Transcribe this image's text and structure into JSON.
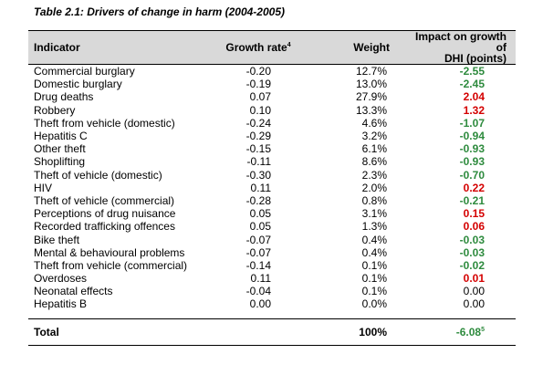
{
  "caption": "Table 2.1: Drivers of change in harm (2004-2005)",
  "headers": {
    "indicator": "Indicator",
    "growth_rate": "Growth rate",
    "growth_rate_note": "4",
    "weight": "Weight",
    "impact_line1": "Impact on growth of",
    "impact_line2": "DHI (points)"
  },
  "rows": [
    {
      "indicator": "Commercial burglary",
      "growth": "-0.20",
      "weight": "12.7%",
      "impact": "-2.55",
      "sign": "neg"
    },
    {
      "indicator": "Domestic burglary",
      "growth": "-0.19",
      "weight": "13.0%",
      "impact": "-2.45",
      "sign": "neg"
    },
    {
      "indicator": "Drug deaths",
      "growth": "0.07",
      "weight": "27.9%",
      "impact": "2.04",
      "sign": "pos"
    },
    {
      "indicator": "Robbery",
      "growth": "0.10",
      "weight": "13.3%",
      "impact": "1.32",
      "sign": "pos"
    },
    {
      "indicator": "Theft from vehicle (domestic)",
      "growth": "-0.24",
      "weight": "4.6%",
      "impact": "-1.07",
      "sign": "neg"
    },
    {
      "indicator": "Hepatitis C",
      "growth": "-0.29",
      "weight": "3.2%",
      "impact": "-0.94",
      "sign": "neg"
    },
    {
      "indicator": "Other theft",
      "growth": "-0.15",
      "weight": "6.1%",
      "impact": "-0.93",
      "sign": "neg"
    },
    {
      "indicator": "Shoplifting",
      "growth": "-0.11",
      "weight": "8.6%",
      "impact": "-0.93",
      "sign": "neg"
    },
    {
      "indicator": "Theft of vehicle (domestic)",
      "growth": "-0.30",
      "weight": "2.3%",
      "impact": "-0.70",
      "sign": "neg"
    },
    {
      "indicator": "HIV",
      "growth": "0.11",
      "weight": "2.0%",
      "impact": "0.22",
      "sign": "pos"
    },
    {
      "indicator": "Theft of vehicle (commercial)",
      "growth": "-0.28",
      "weight": "0.8%",
      "impact": "-0.21",
      "sign": "neg"
    },
    {
      "indicator": "Perceptions of drug nuisance",
      "growth": "0.05",
      "weight": "3.1%",
      "impact": "0.15",
      "sign": "pos"
    },
    {
      "indicator": "Recorded trafficking offences",
      "growth": "0.05",
      "weight": "1.3%",
      "impact": "0.06",
      "sign": "pos"
    },
    {
      "indicator": "Bike theft",
      "growth": "-0.07",
      "weight": "0.4%",
      "impact": "-0.03",
      "sign": "neg"
    },
    {
      "indicator": "Mental & behavioural problems",
      "growth": "-0.07",
      "weight": "0.4%",
      "impact": "-0.03",
      "sign": "neg"
    },
    {
      "indicator": "Theft from vehicle (commercial)",
      "growth": "-0.14",
      "weight": "0.1%",
      "impact": "-0.02",
      "sign": "neg"
    },
    {
      "indicator": "Overdoses",
      "growth": "0.11",
      "weight": "0.1%",
      "impact": "0.01",
      "sign": "pos"
    },
    {
      "indicator": "Neonatal effects",
      "growth": "-0.04",
      "weight": "0.1%",
      "impact": "0.00",
      "sign": "neu"
    },
    {
      "indicator": "Hepatitis B",
      "growth": "0.00",
      "weight": "0.0%",
      "impact": "0.00",
      "sign": "neu"
    }
  ],
  "total": {
    "label": "Total",
    "weight": "100%",
    "impact": "-6.08",
    "impact_note": "5"
  },
  "colors": {
    "positive": "#d40000",
    "negative": "#2e8b3e",
    "header_bg": "#d9d9d9"
  }
}
